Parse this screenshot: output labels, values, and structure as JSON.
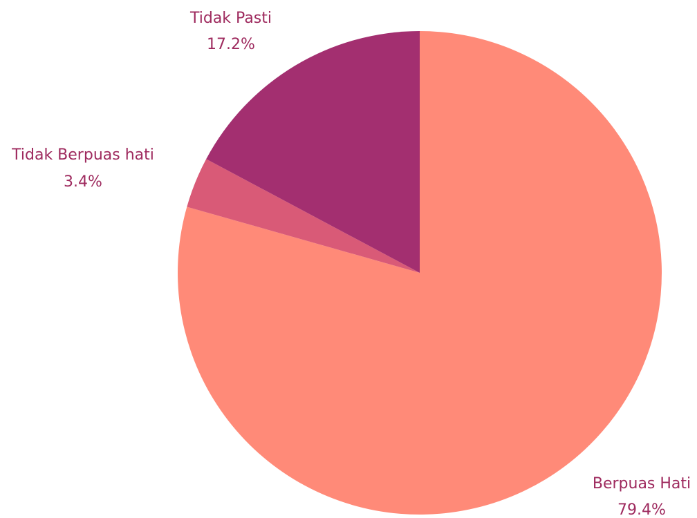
{
  "chart_data": {
    "type": "pie",
    "title": "",
    "start_angle_deg": 0,
    "direction": "clockwise",
    "slices": [
      {
        "label": "Berpuas Hati",
        "percent_label": "79.4%",
        "value": 79.4,
        "color": "#ff8a78"
      },
      {
        "label": "Tidak Berpuas hati",
        "percent_label": "3.4%",
        "value": 3.4,
        "color": "#d95a77"
      },
      {
        "label": "Tidak Pasti",
        "percent_label": "17.2%",
        "value": 17.2,
        "color": "#a32f70"
      }
    ],
    "label_color": "#9e2a5e"
  }
}
